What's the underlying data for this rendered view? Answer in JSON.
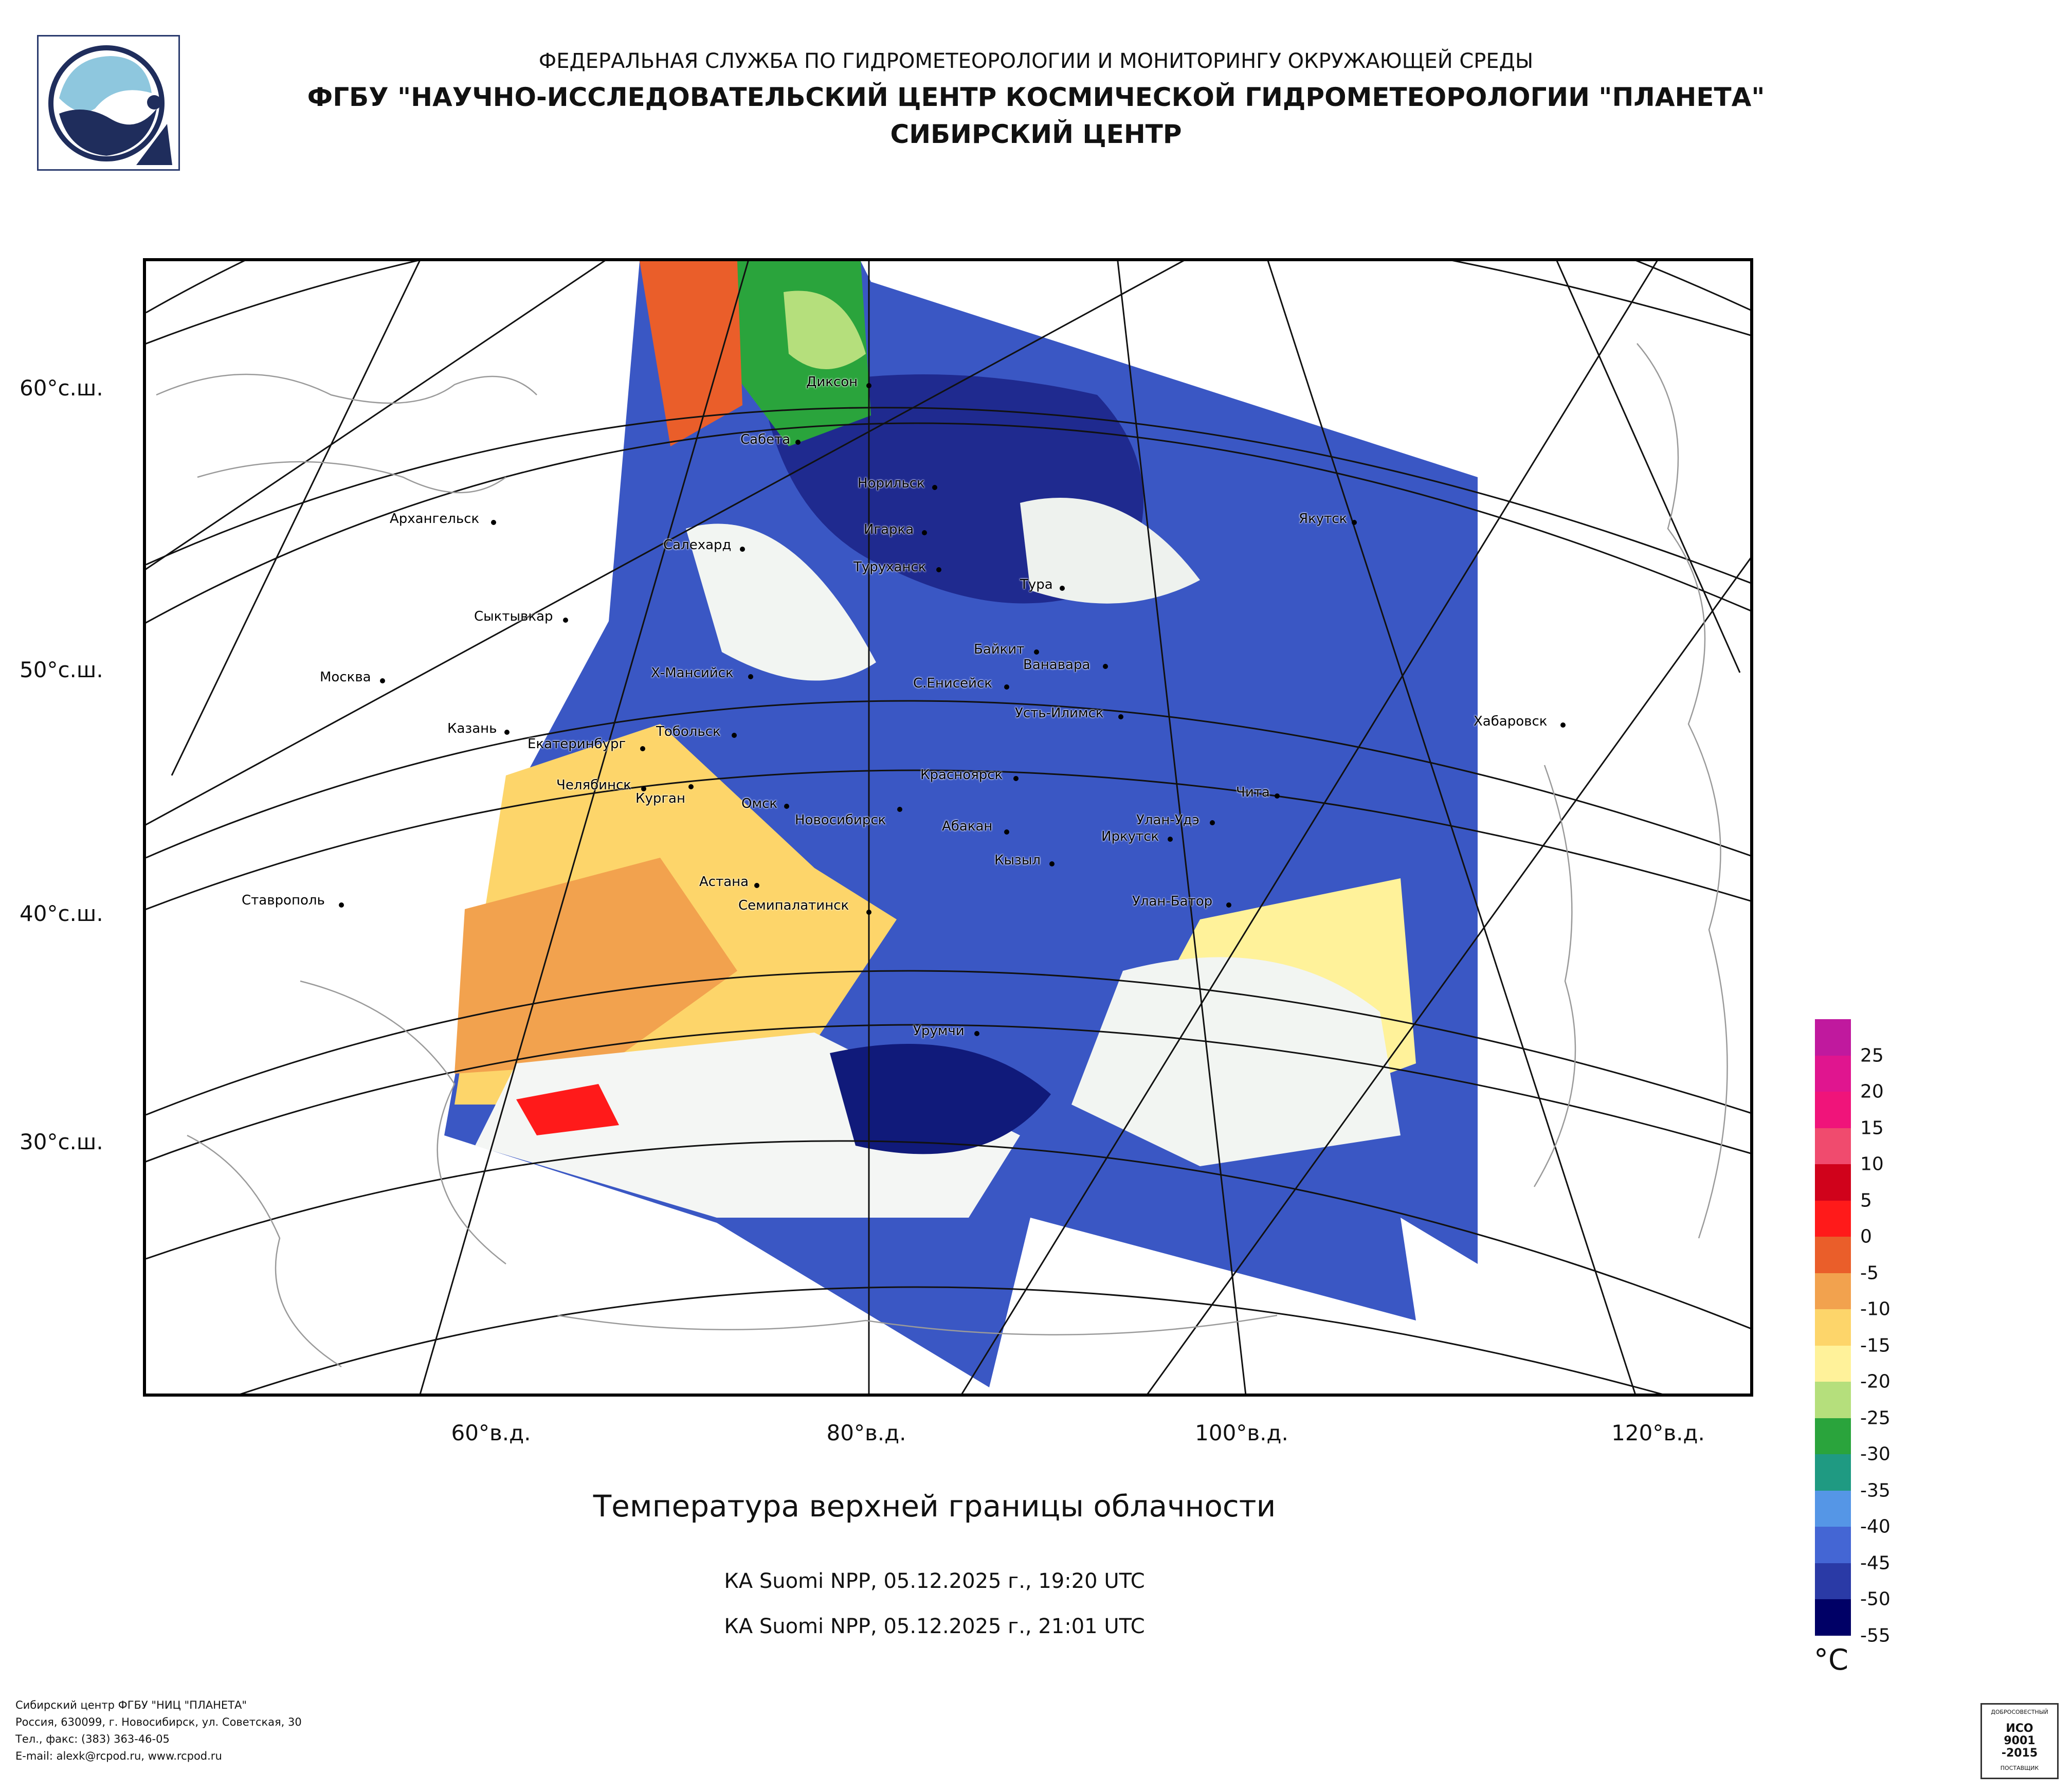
{
  "header": {
    "line1": "ФЕДЕРАЛЬНАЯ СЛУЖБА ПО ГИДРОМЕТЕОРОЛОГИИ И МОНИТОРИНГУ ОКРУЖАЮЩЕЙ СРЕДЫ",
    "line2": "ФГБУ \"НАУЧНО-ИССЛЕДОВАТЕЛЬСКИЙ ЦЕНТР КОСМИЧЕСКОЙ ГИДРОМЕТЕОРОЛОГИИ \"ПЛАНЕТА\"",
    "line3": "СИБИРСКИЙ ЦЕНТР"
  },
  "map": {
    "lat_labels": [
      "60°с.ш.",
      "50°с.ш.",
      "40°с.ш.",
      "30°с.ш."
    ],
    "lon_labels": [
      "60°в.д.",
      "80°в.д.",
      "100°в.д.",
      "120°в.д."
    ],
    "cities": [
      "Диксон",
      "Сабета",
      "Норильск",
      "Игарка",
      "Туруханск",
      "Салехард",
      "Тура",
      "Якутск",
      "Архангельск",
      "Сыктывкар",
      "Москва",
      "Х-Мансийск",
      "Байкит",
      "Ванавара",
      "С.Енисейск",
      "Усть-Илимск",
      "Казань",
      "Екатеринбург",
      "Тобольск",
      "Хабаровск",
      "Челябинск",
      "Курган",
      "Омск",
      "Новосибирск",
      "Красноярск",
      "Чита",
      "Абакан",
      "Улан-Удэ",
      "Иркутск",
      "Кызыл",
      "Астана",
      "Семипалатинск",
      "Улан-Батор",
      "Ставрополь",
      "Урумчи"
    ]
  },
  "title": "Температура верхней границы облачности",
  "subtitles": [
    "КА Suomi NPP, 05.12.2025 г., 19:20 UTC",
    "КА Suomi NPP, 05.12.2025 г., 21:01 UTC"
  ],
  "legend": {
    "unit": "°C",
    "ticks": [
      "25",
      "20",
      "15",
      "10",
      "5",
      "0",
      "-5",
      "-10",
      "-15",
      "-20",
      "-25",
      "-30",
      "-35",
      "-40",
      "-45",
      "-50",
      "-55"
    ],
    "colors": [
      "#c0199e",
      "#e0158f",
      "#f0147a",
      "#f04b6e",
      "#d0021b",
      "#ff1a1a",
      "#ea5e2a",
      "#f2a24e",
      "#fdd56a",
      "#fff29a",
      "#b5df7c",
      "#2aa43c",
      "#1f9a82",
      "#5596e6",
      "#4466d4",
      "#2a3aa6",
      "#000066"
    ]
  },
  "footer": {
    "line1": "Сибирский центр ФГБУ \"НИЦ \"ПЛАНЕТА\"",
    "line2": "Россия, 630099, г. Новосибирск, ул. Советская, 30",
    "line3": "Тел., факс: (383) 363-46-05",
    "line4": "E-mail: alexk@rcpod.ru, www.rcpod.ru"
  },
  "cert": {
    "top": "ДОБРОСОВЕСТНЫЙ",
    "mid": "ИСО 9001 -2015",
    "bottom": "ПОСТАВЩИК"
  }
}
